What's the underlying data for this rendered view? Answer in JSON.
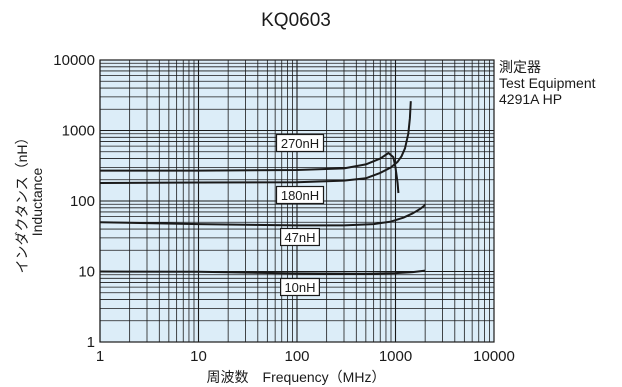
{
  "chart_data": {
    "type": "line",
    "title": "KQ0603",
    "xlabel": "周波数　Frequency（MHz）",
    "ylabel_ja": "インダクタンス（nH）",
    "ylabel_en": "Inductance",
    "xscale": "log",
    "yscale": "log",
    "xlim": [
      1,
      10000
    ],
    "ylim": [
      1,
      10000
    ],
    "x_ticks": [
      "1",
      "10",
      "100",
      "1000",
      "10000"
    ],
    "y_ticks": [
      "1",
      "10",
      "100",
      "1000",
      "10000"
    ],
    "grid": true,
    "plot_background": "#dcedf8",
    "line_color": "#1a1a1a",
    "legend_note": [
      "測定器",
      "Test Equipment",
      "4291A HP"
    ],
    "series": [
      {
        "name": "270nH",
        "points": [
          [
            1,
            270
          ],
          [
            10,
            270
          ],
          [
            100,
            275
          ],
          [
            300,
            290
          ],
          [
            500,
            330
          ],
          [
            700,
            400
          ],
          [
            850,
            480
          ],
          [
            950,
            420
          ],
          [
            1000,
            300
          ],
          [
            1050,
            180
          ],
          [
            1070,
            130
          ]
        ]
      },
      {
        "name": "180nH",
        "points": [
          [
            1,
            180
          ],
          [
            10,
            183
          ],
          [
            100,
            185
          ],
          [
            300,
            195
          ],
          [
            500,
            210
          ],
          [
            700,
            250
          ],
          [
            900,
            300
          ],
          [
            1050,
            360
          ],
          [
            1150,
            430
          ],
          [
            1250,
            560
          ],
          [
            1350,
            900
          ],
          [
            1400,
            1500
          ],
          [
            1430,
            2600
          ]
        ]
      },
      {
        "name": "47nH",
        "points": [
          [
            1,
            50
          ],
          [
            10,
            47
          ],
          [
            100,
            45
          ],
          [
            300,
            45
          ],
          [
            600,
            47
          ],
          [
            900,
            51
          ],
          [
            1200,
            58
          ],
          [
            1500,
            67
          ],
          [
            1800,
            78
          ],
          [
            2000,
            88
          ]
        ]
      },
      {
        "name": "10nH",
        "points": [
          [
            1,
            10
          ],
          [
            10,
            9.9
          ],
          [
            100,
            9.4
          ],
          [
            500,
            9.3
          ],
          [
            1000,
            9.5
          ],
          [
            1500,
            9.8
          ],
          [
            2000,
            10.3
          ]
        ]
      }
    ],
    "label_positions_note": "labels placed left of the curves at about 500 MHz"
  }
}
